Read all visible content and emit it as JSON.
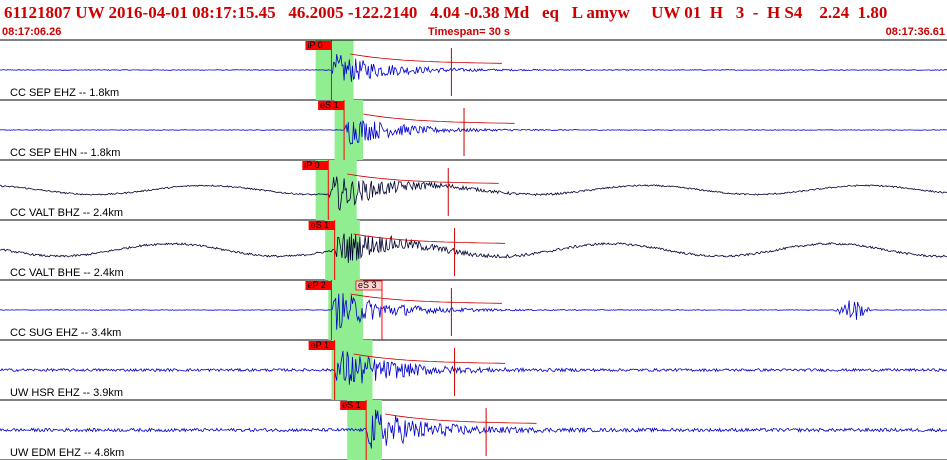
{
  "header": {
    "line": "61121807 UW 2016-04-01 08:17:15.45   46.2005 -122.2140   4.04 -0.38 Md   eq   L amyw     UW 01  H   3  -  H S4    2.24  1.80",
    "start_time": "08:17:06.26",
    "timespan": "Timespan=  30 s",
    "end_time": "08:17:36.61"
  },
  "colors": {
    "header_text": "#cc0000",
    "trace": "#0000cc",
    "trace_dark": "#000033",
    "pick_box": "#ff0000",
    "pick_box_alt": "#ffd0d0",
    "highlight": "#90ee90",
    "coda": "#cc0000"
  },
  "traces": [
    {
      "label": "CC SEP EHZ -- 1.8km",
      "color": "#0000cc",
      "pick": "iP 0",
      "pick_type": "P",
      "pick_time": 10.5,
      "highlight": [
        10.0,
        11.2
      ],
      "amp": 18,
      "noise": 0.12,
      "burst": 38.5
    },
    {
      "label": "CC SEP EHN -- 1.8km",
      "color": "#0000cc",
      "pick": "eS 1",
      "pick_type": "S",
      "pick_time": 10.9,
      "highlight": [
        10.6,
        11.5
      ],
      "amp": 17,
      "noise": 0.1,
      "burst": 38.5
    },
    {
      "label": "CC VALT BHZ -- 2.4km",
      "color": "#000033",
      "pick": "iP 0",
      "pick_type": "P",
      "pick_time": 10.4,
      "highlight": [
        10.0,
        11.3
      ],
      "amp": 20,
      "noise": 0.25,
      "burst": 0
    },
    {
      "label": "CC VALT BHE -- 2.4km",
      "color": "#000033",
      "pick": "eS 1",
      "pick_type": "S",
      "pick_time": 10.6,
      "highlight": [
        10.3,
        11.4
      ],
      "amp": 20,
      "noise": 0.35,
      "burst": 0
    },
    {
      "label": "CC SUG EHZ -- 3.4km",
      "color": "#0000cc",
      "pick": "eP 2",
      "pick_type": "P",
      "pick_time": 10.5,
      "pick2": "eS 3",
      "pick2_time": 12.1,
      "highlight": [
        10.4,
        11.5
      ],
      "amp": 22,
      "noise": 0.1,
      "burst": 27
    },
    {
      "label": "UW HSR EHZ -- 3.9km",
      "color": "#0000cc",
      "pick": "eP 1",
      "pick_type": "P",
      "pick_time": 10.6,
      "highlight": [
        10.5,
        11.8
      ],
      "amp": 24,
      "noise": 0.45,
      "burst": 0
    },
    {
      "label": "UW EDM EHZ -- 4.8km",
      "color": "#0000cc",
      "pick": "eS 1",
      "pick_type": "S",
      "pick_time": 11.6,
      "highlight": [
        11.0,
        12.1
      ],
      "amp": 24,
      "noise": 0.55,
      "burst": 0
    }
  ]
}
